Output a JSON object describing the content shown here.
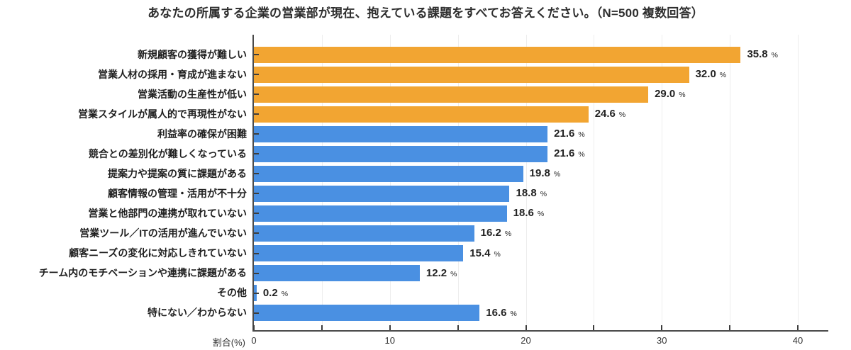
{
  "title": "あなたの所属する企業の営業部が現在、抱えている課題をすべてお答えください。（N=500 複数回答）",
  "chart_data": {
    "type": "bar",
    "orientation": "horizontal",
    "title": "あなたの所属する企業の営業部が現在、抱えている課題をすべてお答えください。（N=500 複数回答）",
    "xlabel": "割合(%)",
    "value_suffix": "%",
    "value_decimals": 1,
    "xlim": [
      0,
      42.2
    ],
    "xticks": [
      0,
      10,
      20,
      30,
      40
    ],
    "minor_tick_step": 5,
    "grid": "vertical, every 5, behind bars",
    "legend": "none",
    "categories": [
      "新規顧客の獲得が難しい",
      "営業人材の採用・育成が進まない",
      "営業活動の生産性が低い",
      "営業スタイルが属人的で再現性がない",
      "利益率の確保が困難",
      "競合との差別化が難しくなっている",
      "提案力や提案の質に課題がある",
      "顧客情報の管理・活用が不十分",
      "営業と他部門の連携が取れていない",
      "営業ツール／ITの活用が進んでいない",
      "顧客ニーズの変化に対応しきれていない",
      "チーム内のモチベーションや連携に課題がある",
      "その他",
      "特にない／わからない"
    ],
    "values": [
      35.8,
      32.0,
      29.0,
      24.6,
      21.6,
      21.6,
      19.8,
      18.8,
      18.6,
      16.2,
      15.4,
      12.2,
      0.2,
      16.6
    ],
    "bar_colors": [
      "#F2A532",
      "#F2A532",
      "#F2A532",
      "#F2A532",
      "#4A90E2",
      "#4A90E2",
      "#4A90E2",
      "#4A90E2",
      "#4A90E2",
      "#4A90E2",
      "#4A90E2",
      "#4A90E2",
      "#4A90E2",
      "#4A90E2"
    ],
    "palette": {
      "highlight": "#F2A532",
      "default": "#4A90E2",
      "grid": "#EDEDED",
      "axis": "#3D3D3D",
      "text": "#1F1F1F"
    }
  }
}
